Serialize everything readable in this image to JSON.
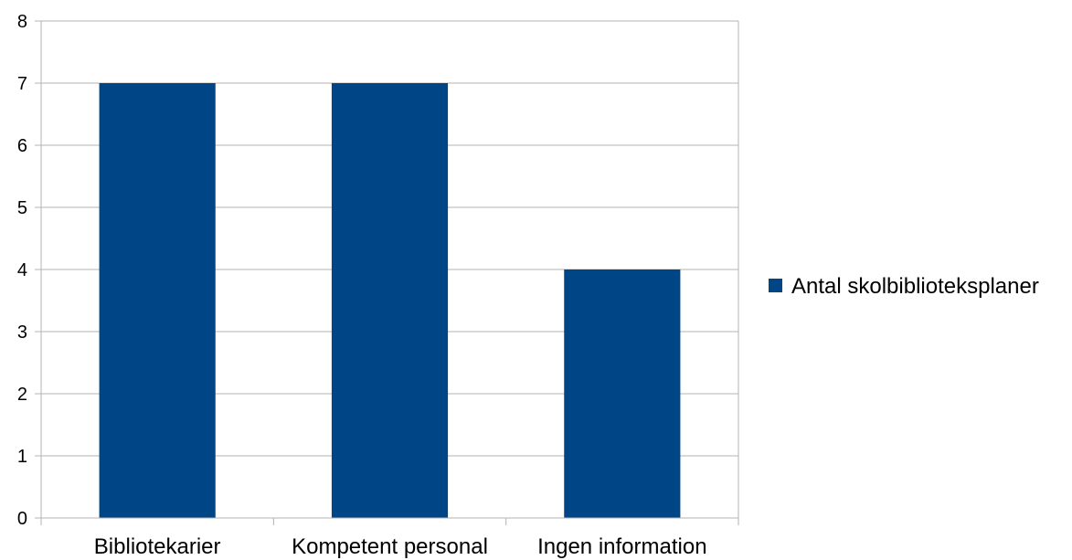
{
  "chart_data": {
    "type": "bar",
    "categories": [
      "Bibliotekarier",
      "Kompetent personal",
      "Ingen information"
    ],
    "series": [
      {
        "name": "Antal skolbiblioteksplaner",
        "values": [
          7,
          7,
          4
        ],
        "color": "#004586"
      }
    ],
    "ylim": [
      0,
      8
    ],
    "yticks": [
      0,
      1,
      2,
      3,
      4,
      5,
      6,
      7,
      8
    ],
    "grid": true,
    "gridline_color": "#b3b3b3",
    "legend_position": "right"
  }
}
